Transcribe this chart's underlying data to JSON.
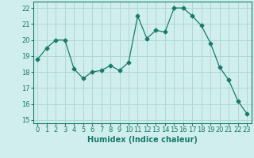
{
  "x": [
    0,
    1,
    2,
    3,
    4,
    5,
    6,
    7,
    8,
    9,
    10,
    11,
    12,
    13,
    14,
    15,
    16,
    17,
    18,
    19,
    20,
    21,
    22,
    23
  ],
  "y": [
    18.8,
    19.5,
    20.0,
    20.0,
    18.2,
    17.6,
    18.0,
    18.1,
    18.4,
    18.1,
    18.6,
    21.5,
    20.1,
    20.6,
    20.5,
    22.0,
    22.0,
    21.5,
    20.9,
    19.8,
    18.3,
    17.5,
    16.2,
    15.4
  ],
  "line_color": "#1a7a6a",
  "marker": "D",
  "marker_size": 2.5,
  "bg_color": "#d0eeee",
  "grid_color": "#b0d8d0",
  "xlabel": "Humidex (Indice chaleur)",
  "xlim": [
    -0.5,
    23.5
  ],
  "ylim": [
    14.8,
    22.4
  ],
  "yticks": [
    15,
    16,
    17,
    18,
    19,
    20,
    21,
    22
  ],
  "xticks": [
    0,
    1,
    2,
    3,
    4,
    5,
    6,
    7,
    8,
    9,
    10,
    11,
    12,
    13,
    14,
    15,
    16,
    17,
    18,
    19,
    20,
    21,
    22,
    23
  ],
  "tick_color": "#1a7a6a",
  "label_color": "#1a7a6a",
  "label_fontsize": 7,
  "tick_fontsize": 6
}
